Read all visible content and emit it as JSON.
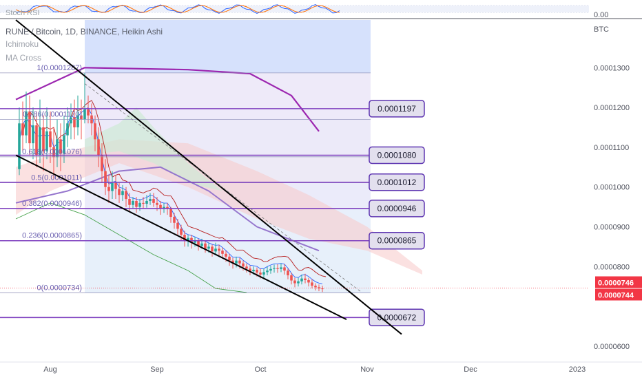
{
  "chart_data": {
    "type": "candlestick",
    "header": {
      "symbol_line": "RUNE / Bitcoin, 1D, BINANCE, Heikin Ashi",
      "indicators": [
        "Ichimoku",
        "MA Cross"
      ],
      "sub_pane_label": "Stoch RSI",
      "sub_pane_value": "0.00"
    },
    "currency_label": "BTC",
    "y_axis": {
      "range": [
        5.6e-05,
        0.000142
      ],
      "ticks": [
        "0.0001300",
        "0.0001200",
        "0.0001100",
        "0.0001000",
        "0.0000900",
        "0.0000800",
        "0.0000600"
      ]
    },
    "x_axis": {
      "ticks": [
        {
          "label": "Aug",
          "day": 0
        },
        {
          "label": "Sep",
          "day": 31
        },
        {
          "label": "Oct",
          "day": 61
        },
        {
          "label": "Nov",
          "day": 92
        },
        {
          "label": "Dec",
          "day": 122
        },
        {
          "label": "2023",
          "day": 153
        }
      ]
    },
    "price_labels": [
      {
        "text": "0.0000746",
        "value": 7.46e-05
      },
      {
        "text": "0.0000744",
        "value": 7.44e-05
      }
    ],
    "fib_levels": [
      {
        "label": "1(0.0001287)",
        "value": 0.0001287
      },
      {
        "label": "0.786(0.0001170)",
        "value": 0.000117
      },
      {
        "label": "0.618(0.0001076)",
        "value": 0.0001076
      },
      {
        "label": "0.5(0.0001011)",
        "value": 0.0001011
      },
      {
        "label": "0.382(0.0000946)",
        "value": 9.46e-05
      },
      {
        "label": "0.236(0.0000865)",
        "value": 8.65e-05
      },
      {
        "label": "0(0.0000734)",
        "value": 7.34e-05
      }
    ],
    "horizontal_levels": [
      {
        "text": "0.0001197",
        "value": 0.0001197
      },
      {
        "text": "0.0001080",
        "value": 0.000108
      },
      {
        "text": "0.0001012",
        "value": 0.0001012
      },
      {
        "text": "0.0000946",
        "value": 9.46e-05
      },
      {
        "text": "0.0000865",
        "value": 8.65e-05
      },
      {
        "text": "0.0000672",
        "value": 6.72e-05
      }
    ],
    "fib_range_days": [
      10,
      93
    ],
    "trendlines": [
      {
        "name": "upper-wedge",
        "from": [
          -10,
          0.000142
        ],
        "to": [
          102,
          6.3e-05
        ]
      },
      {
        "name": "lower-wedge",
        "from": [
          -10,
          0.000108
        ],
        "to": [
          86,
          6.67e-05
        ]
      }
    ],
    "ma_long": [
      [
        -10,
        0.000122
      ],
      [
        10,
        0.00013
      ],
      [
        40,
        0.0001295
      ],
      [
        58,
        0.0001285
      ],
      [
        70,
        0.000123
      ],
      [
        78,
        0.000114
      ]
    ],
    "ma_mid": [
      [
        -10,
        9.6e-05
      ],
      [
        5,
        9.9e-05
      ],
      [
        20,
        0.000104
      ],
      [
        32,
        0.000105
      ],
      [
        46,
        9.9e-05
      ],
      [
        60,
        9e-05
      ],
      [
        78,
        8.4e-05
      ]
    ],
    "candles": [
      [
        -9,
        0.0001045,
        0.000116,
        0.00012,
        0.000103
      ],
      [
        -8,
        0.000116,
        0.000113,
        0.0001215,
        0.000109
      ],
      [
        -7,
        0.000113,
        0.000119,
        0.000124,
        0.000111
      ],
      [
        -6,
        0.000119,
        0.000111,
        0.000123,
        0.000108
      ],
      [
        -5,
        0.000111,
        0.0001155,
        0.00012,
        0.000107
      ],
      [
        -4,
        0.0001155,
        0.000108,
        0.000119,
        0.000105
      ],
      [
        -3,
        0.000108,
        0.000115,
        0.000122,
        0.000106
      ],
      [
        -2,
        0.000115,
        0.000109,
        0.000118,
        0.000104
      ],
      [
        -1,
        0.000109,
        0.000114,
        0.00012,
        0.000107
      ],
      [
        0,
        0.000114,
        0.00011,
        0.000119,
        0.000106
      ],
      [
        1,
        0.00011,
        0.0001075,
        0.000115,
        0.000102
      ],
      [
        2,
        0.0001075,
        0.000112,
        0.000117,
        0.000105
      ],
      [
        3,
        0.000112,
        0.0001085,
        0.000116,
        0.000104
      ],
      [
        4,
        0.0001085,
        0.000113,
        0.000118,
        0.000106
      ],
      [
        5,
        0.000113,
        0.000116,
        0.00012,
        0.00011
      ],
      [
        6,
        0.000116,
        0.0001175,
        0.000121,
        0.000112
      ],
      [
        7,
        0.0001175,
        0.000115,
        0.000122,
        0.000112
      ],
      [
        8,
        0.000115,
        0.000118,
        0.000123,
        0.000113
      ],
      [
        9,
        0.000118,
        0.000117,
        0.000122,
        0.000112
      ],
      [
        10,
        0.000117,
        0.0001195,
        0.0001287,
        0.000116
      ],
      [
        11,
        0.0001195,
        0.000118,
        0.000123,
        0.000116
      ],
      [
        12,
        0.000118,
        0.000116,
        0.000121,
        0.000113
      ],
      [
        13,
        0.000116,
        0.000112,
        0.000118,
        0.000109
      ],
      [
        14,
        0.000112,
        0.000108,
        0.000115,
        0.000105
      ],
      [
        15,
        0.000108,
        0.000104,
        0.000111,
        0.000101
      ],
      [
        16,
        0.000104,
        0.0001,
        0.000107,
        9.8e-05
      ],
      [
        17,
        0.0001,
        9.9e-05,
        0.000103,
        9.6e-05
      ],
      [
        18,
        9.9e-05,
        0.000101,
        0.000104,
        9.7e-05
      ],
      [
        19,
        0.000101,
        9.95e-05,
        0.000103,
        9.7e-05
      ],
      [
        20,
        9.95e-05,
        9.8e-05,
        0.000101,
        9.6e-05
      ],
      [
        21,
        9.8e-05,
        9.9e-05,
        0.0001005,
        9.65e-05
      ],
      [
        22,
        9.9e-05,
        9.7e-05,
        0.0001,
        9.5e-05
      ],
      [
        23,
        9.7e-05,
        9.55e-05,
        9.85e-05,
        9.4e-05
      ],
      [
        24,
        9.55e-05,
        9.65e-05,
        9.75e-05,
        9.45e-05
      ],
      [
        25,
        9.65e-05,
        9.5e-05,
        9.75e-05,
        9.35e-05
      ],
      [
        26,
        9.5e-05,
        9.6e-05,
        9.7e-05,
        9.4e-05
      ],
      [
        27,
        9.6e-05,
        9.58e-05,
        9.75e-05,
        9.45e-05
      ],
      [
        28,
        9.58e-05,
        9.65e-05,
        9.8e-05,
        9.48e-05
      ],
      [
        29,
        9.65e-05,
        9.7e-05,
        9.85e-05,
        9.55e-05
      ],
      [
        30,
        9.7e-05,
        9.6e-05,
        9.85e-05,
        9.5e-05
      ],
      [
        31,
        9.6e-05,
        9.55e-05,
        9.75e-05,
        9.4e-05
      ],
      [
        32,
        9.55e-05,
        9.45e-05,
        9.65e-05,
        9.3e-05
      ],
      [
        33,
        9.45e-05,
        9.5e-05,
        9.6e-05,
        9.35e-05
      ],
      [
        34,
        9.5e-05,
        9.45e-05,
        9.6e-05,
        9.3e-05
      ],
      [
        35,
        9.45e-05,
        9.25e-05,
        9.5e-05,
        9.1e-05
      ],
      [
        36,
        9.25e-05,
        9.1e-05,
        9.35e-05,
        8.95e-05
      ],
      [
        37,
        9.1e-05,
        8.95e-05,
        9.2e-05,
        8.8e-05
      ],
      [
        38,
        8.95e-05,
        8.8e-05,
        9.05e-05,
        8.65e-05
      ],
      [
        39,
        8.8e-05,
        8.65e-05,
        8.9e-05,
        8.5e-05
      ],
      [
        40,
        8.65e-05,
        8.72e-05,
        8.8e-05,
        8.5e-05
      ],
      [
        41,
        8.72e-05,
        8.6e-05,
        8.8e-05,
        8.45e-05
      ],
      [
        42,
        8.6e-05,
        8.65e-05,
        8.75e-05,
        8.5e-05
      ],
      [
        43,
        8.65e-05,
        8.52e-05,
        8.7e-05,
        8.4e-05
      ],
      [
        44,
        8.52e-05,
        8.58e-05,
        8.7e-05,
        8.45e-05
      ],
      [
        45,
        8.58e-05,
        8.45e-05,
        8.65e-05,
        8.35e-05
      ],
      [
        46,
        8.45e-05,
        8.5e-05,
        8.6e-05,
        8.35e-05
      ],
      [
        47,
        8.5e-05,
        8.38e-05,
        8.55e-05,
        8.25e-05
      ],
      [
        48,
        8.38e-05,
        8.45e-05,
        8.6e-05,
        8.3e-05
      ],
      [
        49,
        8.45e-05,
        8.4e-05,
        8.55e-05,
        8.28e-05
      ],
      [
        50,
        8.4e-05,
        8.32e-05,
        8.48e-05,
        8.2e-05
      ],
      [
        51,
        8.32e-05,
        8.25e-05,
        8.4e-05,
        8.12e-05
      ],
      [
        52,
        8.25e-05,
        8.15e-05,
        8.32e-05,
        8.02e-05
      ],
      [
        53,
        8.15e-05,
        8.08e-05,
        8.22e-05,
        7.95e-05
      ],
      [
        54,
        8.08e-05,
        8.15e-05,
        8.25e-05,
        7.98e-05
      ],
      [
        55,
        8.15e-05,
        8.08e-05,
        8.22e-05,
        7.95e-05
      ],
      [
        56,
        8.08e-05,
        8e-05,
        8.15e-05,
        7.9e-05
      ],
      [
        57,
        8e-05,
        7.95e-05,
        8.08e-05,
        7.85e-05
      ],
      [
        58,
        7.95e-05,
        7.88e-05,
        8.02e-05,
        7.78e-05
      ],
      [
        59,
        7.88e-05,
        7.92e-05,
        8e-05,
        7.8e-05
      ],
      [
        60,
        7.92e-05,
        7.85e-05,
        7.98e-05,
        7.75e-05
      ],
      [
        61,
        7.85e-05,
        7.8e-05,
        7.95e-05,
        7.7e-05
      ],
      [
        62,
        7.8e-05,
        7.86e-05,
        7.95e-05,
        7.72e-05
      ],
      [
        63,
        7.86e-05,
        7.9e-05,
        8e-05,
        7.78e-05
      ],
      [
        64,
        7.9e-05,
        7.94e-05,
        8.02e-05,
        7.82e-05
      ],
      [
        65,
        7.94e-05,
        7.96e-05,
        8.05e-05,
        7.85e-05
      ],
      [
        66,
        7.96e-05,
        7.94e-05,
        8.06e-05,
        7.84e-05
      ],
      [
        67,
        7.94e-05,
        7.98e-05,
        8.08e-05,
        7.86e-05
      ],
      [
        68,
        7.98e-05,
        7.9e-05,
        8.06e-05,
        7.8e-05
      ],
      [
        69,
        7.9e-05,
        7.78e-05,
        7.95e-05,
        7.68e-05
      ],
      [
        70,
        7.78e-05,
        7.65e-05,
        7.85e-05,
        7.55e-05
      ],
      [
        71,
        7.65e-05,
        7.58e-05,
        7.72e-05,
        7.48e-05
      ],
      [
        72,
        7.58e-05,
        7.63e-05,
        7.72e-05,
        7.5e-05
      ],
      [
        73,
        7.63e-05,
        7.7e-05,
        7.8e-05,
        7.55e-05
      ],
      [
        74,
        7.7e-05,
        7.66e-05,
        7.82e-05,
        7.58e-05
      ],
      [
        75,
        7.66e-05,
        7.6e-05,
        7.72e-05,
        7.5e-05
      ],
      [
        76,
        7.6e-05,
        7.52e-05,
        7.68e-05,
        7.45e-05
      ],
      [
        77,
        7.52e-05,
        7.48e-05,
        7.58e-05,
        7.4e-05
      ],
      [
        78,
        7.48e-05,
        7.45e-05,
        7.55e-05,
        7.38e-05
      ],
      [
        79,
        7.45e-05,
        7.44e-05,
        7.52e-05,
        7.36e-05
      ]
    ],
    "colors": {
      "up": "#26a69a",
      "down": "#ef5350",
      "level_line": "#7e3fbf",
      "level_box_border": "#5e35b1",
      "level_box_fill": "#e3e0ee",
      "price_tag": "#f23645",
      "ma_long": "#9c27b0",
      "ma_mid": "#9575cd",
      "trendline": "#000000",
      "fib_zone": "#cfdcfb",
      "cloud_red": "#f8c9c9",
      "cloud_green": "#cfe9d6"
    }
  }
}
